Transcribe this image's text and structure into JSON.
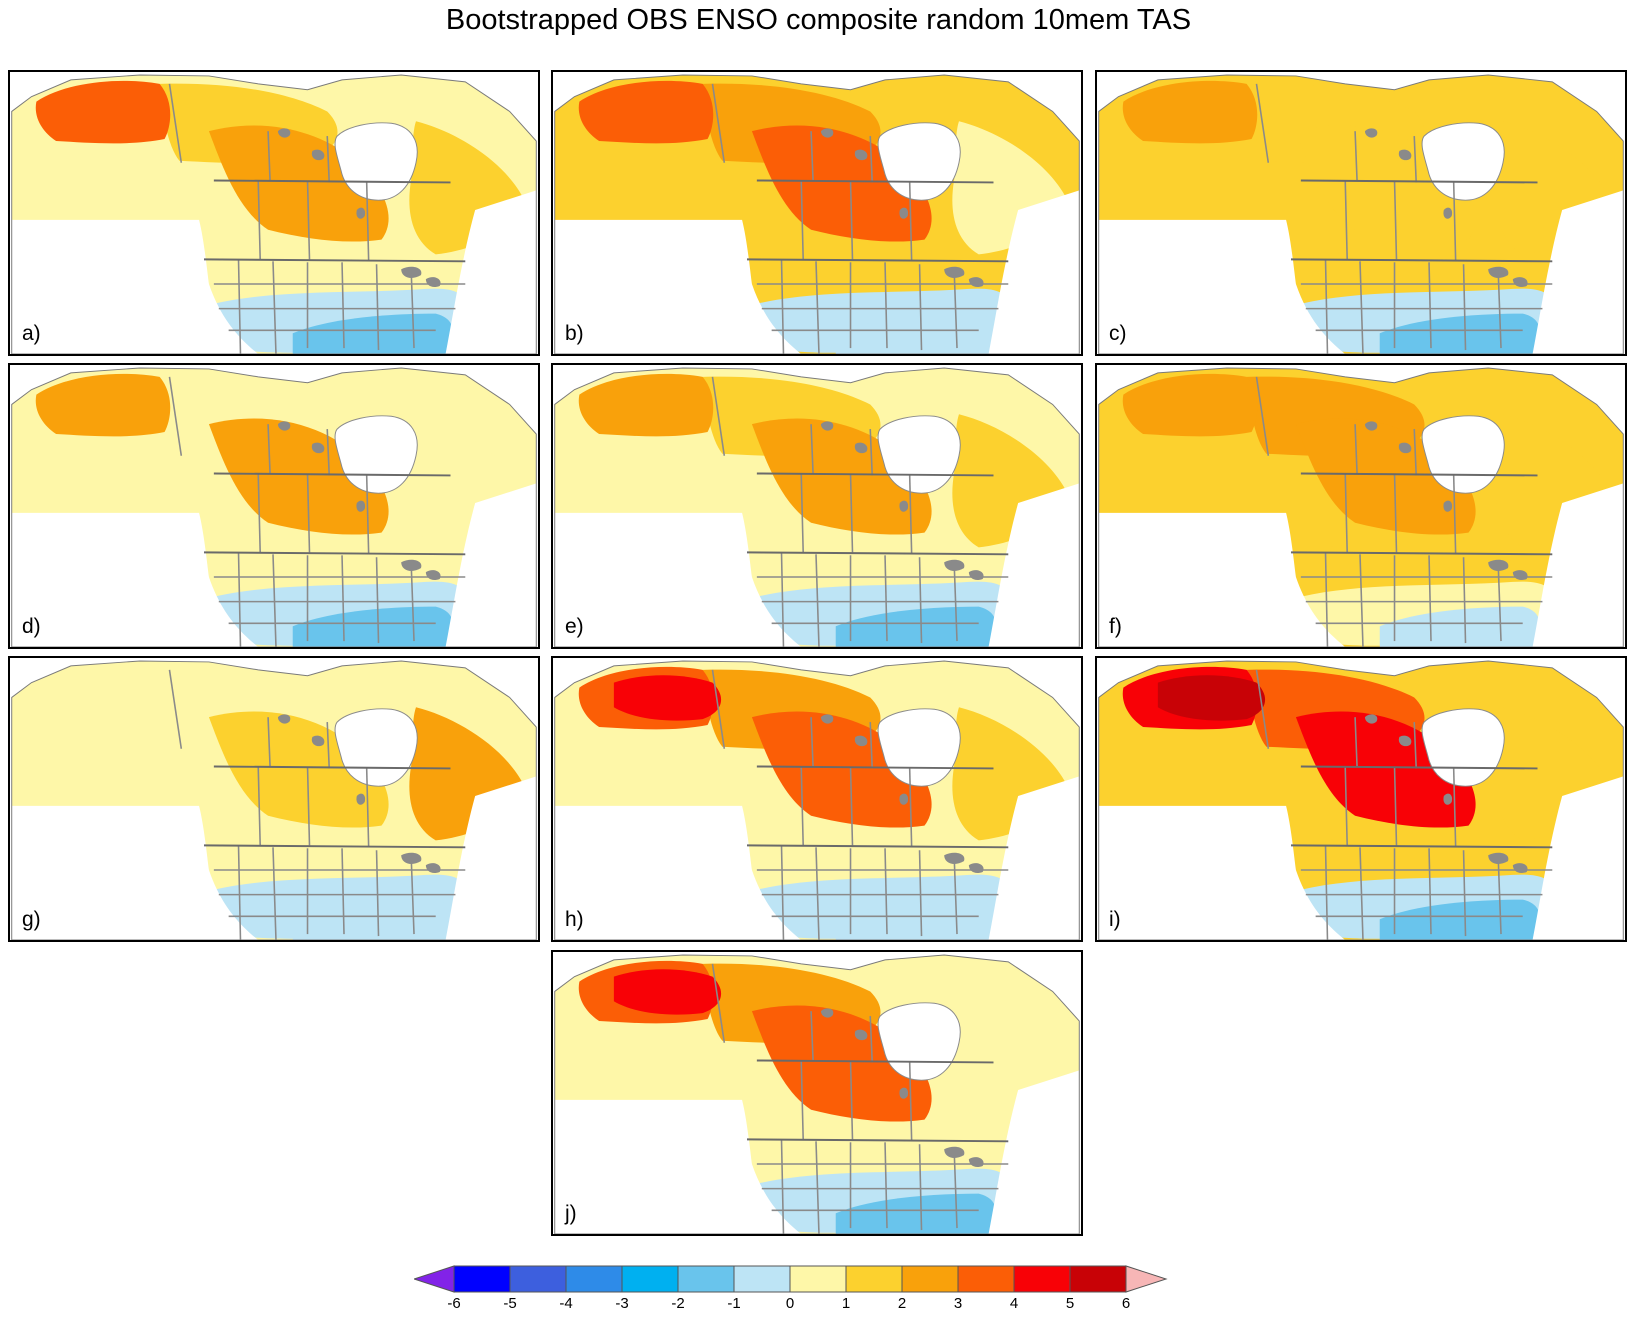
{
  "title": "Bootstrapped OBS ENSO composite random 10mem TAS",
  "colorbar": {
    "labels": [
      "-6",
      "-5",
      "-4",
      "-3",
      "-2",
      "-1",
      "0",
      "1",
      "2",
      "3",
      "4",
      "5",
      "6"
    ],
    "colors": [
      "#0000ff",
      "#3d5fde",
      "#2e8be8",
      "#00b0f0",
      "#69c4ec",
      "#bde4f5",
      "#fef7a8",
      "#fcd12e",
      "#f9a10b",
      "#fb5e06",
      "#f80106",
      "#c80206"
    ],
    "low_extend_color": "#8223e8",
    "high_extend_color": "#f7b6b6"
  },
  "palette": {
    "p3": "#fb5e06",
    "p2": "#f9a10b",
    "p1": "#fcd12e",
    "p0": "#fef7a8",
    "m1": "#bde4f5",
    "m2": "#69c4ec",
    "p4": "#f80106",
    "p5": "#c80206",
    "land_bg": "#fcd12e",
    "border": "#8a8a8a",
    "frame": "#000000"
  },
  "panels": [
    {
      "label": "a)",
      "alaska": "p3",
      "nw": "p1",
      "central": "p2",
      "east": "p1",
      "usn": "p0",
      "uss": "m1",
      "gulf": "m2",
      "hot": null
    },
    {
      "label": "b)",
      "alaska": "p3",
      "nw": "p2",
      "central": "p3",
      "east": "p0",
      "usn": "p1",
      "uss": "m1",
      "gulf": "m1",
      "hot": null
    },
    {
      "label": "c)",
      "alaska": "p2",
      "nw": "p1",
      "central": "p1",
      "east": "p1",
      "usn": "p1",
      "uss": "m1",
      "gulf": "m2",
      "hot": null
    },
    {
      "label": "d)",
      "alaska": "p2",
      "nw": "p0",
      "central": "p2",
      "east": "p0",
      "usn": "p0",
      "uss": "m1",
      "gulf": "m2",
      "hot": null
    },
    {
      "label": "e)",
      "alaska": "p2",
      "nw": "p1",
      "central": "p2",
      "east": "p1",
      "usn": "p0",
      "uss": "m1",
      "gulf": "m2",
      "hot": null
    },
    {
      "label": "f)",
      "alaska": "p2",
      "nw": "p2",
      "central": "p2",
      "east": "p1",
      "usn": "p1",
      "uss": "p0",
      "gulf": "m1",
      "hot": null
    },
    {
      "label": "g)",
      "alaska": "p0",
      "nw": "p0",
      "central": "p1",
      "east": "p2",
      "usn": "p0",
      "uss": "m1",
      "gulf": "m1",
      "hot": null
    },
    {
      "label": "h)",
      "alaska": "p3",
      "nw": "p2",
      "central": "p3",
      "east": "p1",
      "usn": "p0",
      "uss": "m1",
      "gulf": "m1",
      "hot": "p4"
    },
    {
      "label": "i)",
      "alaska": "p4",
      "nw": "p3",
      "central": "p4",
      "east": "p1",
      "usn": "p1",
      "uss": "m1",
      "gulf": "m2",
      "hot": "p5"
    },
    {
      "label": "j)",
      "alaska": "p3",
      "nw": "p2",
      "central": "p3",
      "east": "p0",
      "usn": "p0",
      "uss": "m1",
      "gulf": "m2",
      "hot": "p4"
    }
  ]
}
